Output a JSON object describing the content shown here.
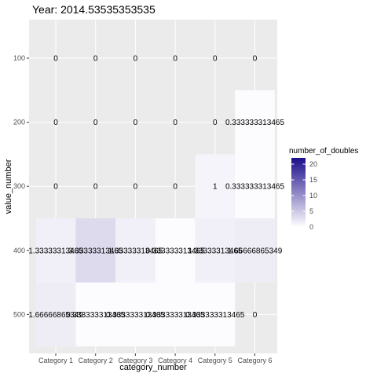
{
  "chart_data": {
    "type": "heatmap",
    "title": "Year: 2014.53535353535",
    "xlabel": "category_number",
    "ylabel": "value_number",
    "x_categories": [
      "Category 1",
      "Category 2",
      "Category 3",
      "Category 4",
      "Category 5",
      "Category 6"
    ],
    "y_categories": [
      "100",
      "200",
      "300",
      "400",
      "500"
    ],
    "cells": [
      {
        "x": "Category 1",
        "y": "100",
        "value": 0,
        "label": "0"
      },
      {
        "x": "Category 2",
        "y": "100",
        "value": 0,
        "label": "0"
      },
      {
        "x": "Category 3",
        "y": "100",
        "value": 0,
        "label": "0"
      },
      {
        "x": "Category 4",
        "y": "100",
        "value": 0,
        "label": "0"
      },
      {
        "x": "Category 5",
        "y": "100",
        "value": 0,
        "label": "0"
      },
      {
        "x": "Category 6",
        "y": "100",
        "value": 0,
        "label": "0"
      },
      {
        "x": "Category 1",
        "y": "200",
        "value": 0,
        "label": "0"
      },
      {
        "x": "Category 2",
        "y": "200",
        "value": 0,
        "label": "0"
      },
      {
        "x": "Category 3",
        "y": "200",
        "value": 0,
        "label": "0"
      },
      {
        "x": "Category 4",
        "y": "200",
        "value": 0,
        "label": "0"
      },
      {
        "x": "Category 5",
        "y": "200",
        "value": 0,
        "label": "0"
      },
      {
        "x": "Category 6",
        "y": "200",
        "value": 0.333333313465,
        "label": "0.333333313465"
      },
      {
        "x": "Category 1",
        "y": "300",
        "value": 0,
        "label": "0"
      },
      {
        "x": "Category 2",
        "y": "300",
        "value": 0,
        "label": "0"
      },
      {
        "x": "Category 3",
        "y": "300",
        "value": 0,
        "label": "0"
      },
      {
        "x": "Category 4",
        "y": "300",
        "value": 0,
        "label": "0"
      },
      {
        "x": "Category 5",
        "y": "300",
        "value": 1,
        "label": "1"
      },
      {
        "x": "Category 6",
        "y": "300",
        "value": 0.333333313465,
        "label": "0.333333313465"
      },
      {
        "x": "Category 1",
        "y": "400",
        "value": 1.33333313465,
        "label": "1.33333313465"
      },
      {
        "x": "Category 2",
        "y": "400",
        "value": 3.33333313465,
        "label": "3.33333313465"
      },
      {
        "x": "Category 3",
        "y": "400",
        "value": 1.33333313465,
        "label": "1.33333313465"
      },
      {
        "x": "Category 4",
        "y": "400",
        "value": 0.333333313465,
        "label": "0.333333313465"
      },
      {
        "x": "Category 5",
        "y": "400",
        "value": 1.33333313465,
        "label": "1.33333313465"
      },
      {
        "x": "Category 6",
        "y": "400",
        "value": 1.66666865349,
        "label": "1.66666865349"
      },
      {
        "x": "Category 1",
        "y": "500",
        "value": 1.66666865349,
        "label": "1.66666865349"
      },
      {
        "x": "Category 2",
        "y": "500",
        "value": 0.333333313465,
        "label": "0.333333313465"
      },
      {
        "x": "Category 3",
        "y": "500",
        "value": 0.333333313465,
        "label": "0.333333313465"
      },
      {
        "x": "Category 4",
        "y": "500",
        "value": 0.333333313465,
        "label": "0.333333313465"
      },
      {
        "x": "Category 5",
        "y": "500",
        "value": 0.333333313465,
        "label": "0.333333313465"
      },
      {
        "x": "Category 6",
        "y": "500",
        "value": 0,
        "label": "0"
      }
    ],
    "legend": {
      "title": "number_of_doubles",
      "ticks": [
        0,
        5,
        10,
        15,
        20
      ],
      "range": [
        0,
        22
      ],
      "low_color": "#ffffff",
      "high_color": "#1c0d8a"
    },
    "panel_background": "#ebebeb",
    "grid": true
  }
}
